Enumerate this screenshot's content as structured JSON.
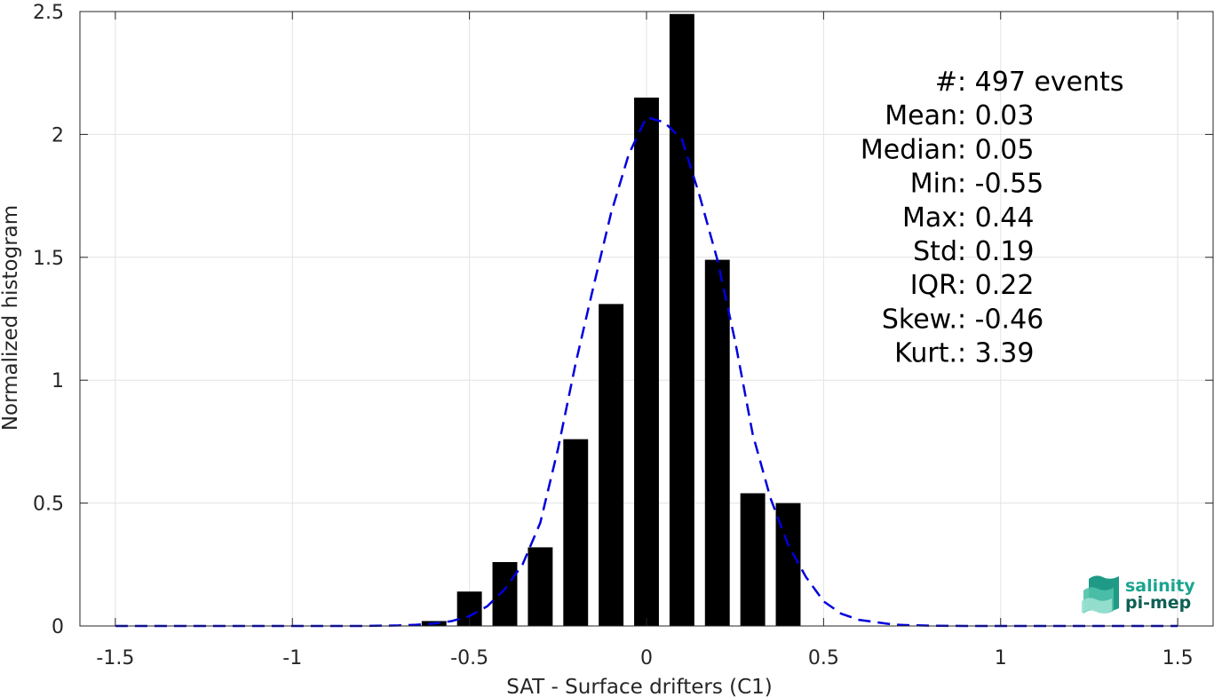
{
  "chart_data": {
    "type": "bar",
    "xlabel": "SAT - Surface drifters (C1)",
    "ylabel": "Normalized histogram",
    "xlim": [
      -1.6,
      1.6
    ],
    "ylim": [
      0,
      2.5
    ],
    "grid": true,
    "x_ticks": [
      "-1.5",
      "-1",
      "-0.5",
      "0",
      "0.5",
      "1",
      "1.5"
    ],
    "x_tick_values": [
      -1.5,
      -1,
      -0.5,
      0,
      0.5,
      1,
      1.5
    ],
    "y_ticks": [
      "0",
      "0.5",
      "1",
      "1.5",
      "2",
      "2.5"
    ],
    "y_tick_values": [
      0,
      0.5,
      1,
      1.5,
      2,
      2.5
    ],
    "bar_width": 0.07,
    "bars": {
      "x": [
        -0.6,
        -0.5,
        -0.4,
        -0.3,
        -0.2,
        -0.1,
        0.0,
        0.1,
        0.2,
        0.3,
        0.4
      ],
      "values": [
        0.02,
        0.14,
        0.26,
        0.32,
        0.76,
        1.31,
        2.15,
        2.49,
        1.49,
        0.54,
        0.5
      ],
      "color": "#000000"
    },
    "fit_curve": {
      "style": "dashed",
      "color": "#0000dd",
      "x": [
        -1.5,
        -1.4,
        -1.3,
        -1.2,
        -1.1,
        -1.0,
        -0.9,
        -0.8,
        -0.7,
        -0.65,
        -0.6,
        -0.55,
        -0.5,
        -0.45,
        -0.4,
        -0.35,
        -0.3,
        -0.25,
        -0.2,
        -0.15,
        -0.1,
        -0.05,
        0.0,
        0.05,
        0.1,
        0.15,
        0.2,
        0.25,
        0.3,
        0.35,
        0.4,
        0.45,
        0.5,
        0.55,
        0.6,
        0.7,
        0.8,
        0.9,
        1.0,
        1.1,
        1.2,
        1.3,
        1.4,
        1.5
      ],
      "y": [
        0,
        0,
        0,
        0,
        0,
        0,
        0,
        0,
        0.002,
        0.005,
        0.01,
        0.02,
        0.04,
        0.08,
        0.15,
        0.25,
        0.42,
        0.72,
        1.07,
        1.38,
        1.68,
        1.92,
        2.07,
        2.05,
        1.98,
        1.75,
        1.49,
        1.16,
        0.78,
        0.52,
        0.33,
        0.2,
        0.1,
        0.05,
        0.025,
        0.005,
        0.001,
        0,
        0,
        0,
        0,
        0,
        0,
        0
      ]
    },
    "stats": [
      {
        "label": "#  ",
        "value": ": 497 events"
      },
      {
        "label": "Mean ",
        "value": ": 0.03"
      },
      {
        "label": "Median ",
        "value": ": 0.05"
      },
      {
        "label": "Min ",
        "value": ": -0.55"
      },
      {
        "label": "Max ",
        "value": ": 0.44"
      },
      {
        "label": "Std ",
        "value": ": 0.19"
      },
      {
        "label": "IQR ",
        "value": ": 0.22"
      },
      {
        "label": "Skew. ",
        "value": ": -0.46"
      },
      {
        "label": "Kurt. ",
        "value": ": 3.39"
      }
    ]
  },
  "logo": {
    "line1": "salinity",
    "line2": "pi-mep",
    "color1": "#1aa58f",
    "color2": "#0d5f55"
  }
}
